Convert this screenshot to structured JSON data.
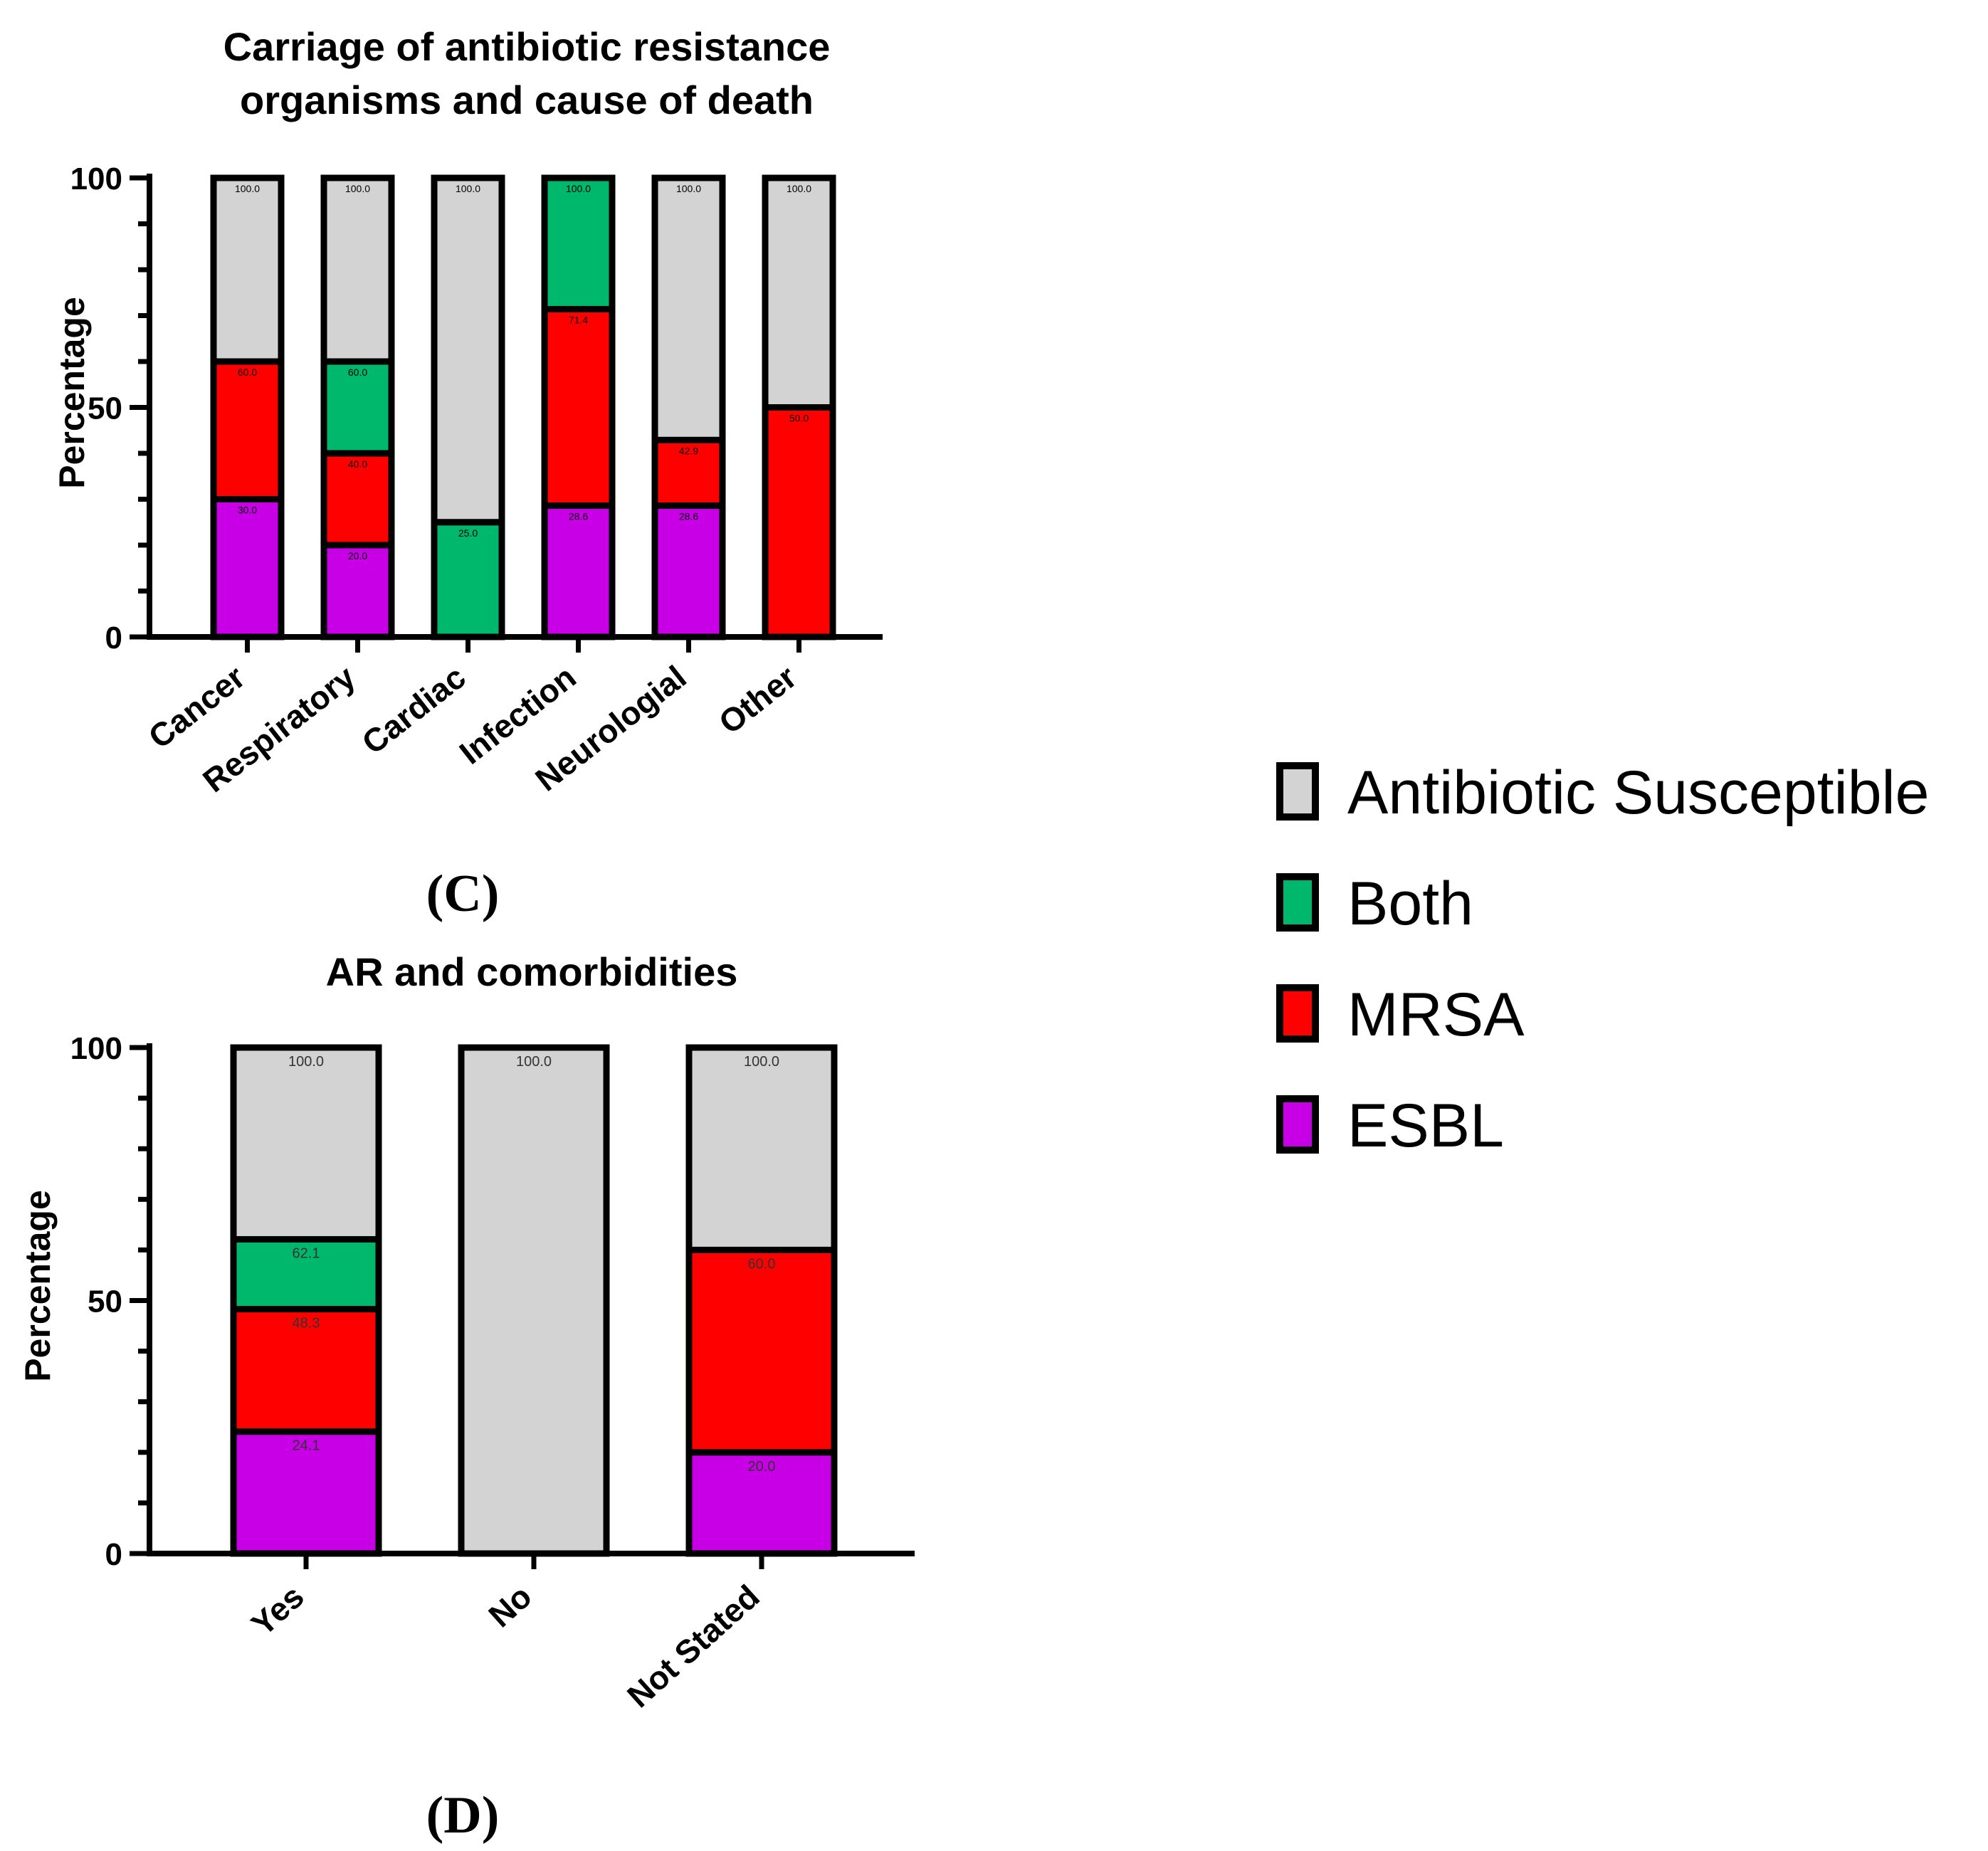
{
  "legend": {
    "items": [
      {
        "label": "Antibiotic Susceptible",
        "color": "#d3d3d3"
      },
      {
        "label": "Both",
        "color": "#00b86b"
      },
      {
        "label": "MRSA",
        "color": "#ff0000"
      },
      {
        "label": "ESBL",
        "color": "#c800e6"
      }
    ]
  },
  "chart_data": [
    {
      "panel_label": "(C)",
      "type": "bar",
      "stacked": true,
      "title": "Carriage of antibiotic resistance organisms and cause of death",
      "title_lines": [
        "Carriage of antibiotic resistance",
        "organisms and cause of death"
      ],
      "xlabel": "",
      "ylabel": "Percentage",
      "ylim": [
        0,
        100
      ],
      "yticks": [
        0,
        50,
        100
      ],
      "categories": [
        "Cancer",
        "Respiratory",
        "Cardiac",
        "Infection",
        "Neurologial",
        "Other"
      ],
      "series": [
        {
          "name": "ESBL",
          "values": [
            30.0,
            20.0,
            0,
            28.6,
            28.6,
            0
          ]
        },
        {
          "name": "MRSA",
          "values": [
            30.0,
            20.0,
            0,
            42.8,
            14.3,
            50.0
          ]
        },
        {
          "name": "Both",
          "values": [
            0,
            20.0,
            25.0,
            28.6,
            0,
            0
          ]
        },
        {
          "name": "Antibiotic Susceptible",
          "values": [
            40.0,
            40.0,
            75.0,
            0,
            57.1,
            50.0
          ]
        }
      ],
      "data_labels": [
        [
          "30.0",
          "60.0",
          "100.0"
        ],
        [
          "20.0",
          "40.0",
          "60.0",
          "100.0"
        ],
        [
          "25.0",
          "100.0"
        ],
        [
          "28.6",
          "71.4",
          "100.0"
        ],
        [
          "28.6",
          "42.9",
          "100.0"
        ],
        [
          "50.0",
          "100.0"
        ]
      ]
    },
    {
      "panel_label": "(D)",
      "type": "bar",
      "stacked": true,
      "title": "AR and comorbidities",
      "title_lines": [
        "AR and comorbidities"
      ],
      "xlabel": "",
      "ylabel": "Percentage",
      "ylim": [
        0,
        100
      ],
      "yticks": [
        0,
        50,
        100
      ],
      "categories": [
        "Yes",
        "No",
        "Not Stated"
      ],
      "series": [
        {
          "name": "ESBL",
          "values": [
            24.1,
            0,
            20.0
          ]
        },
        {
          "name": "MRSA",
          "values": [
            24.2,
            0,
            40.0
          ]
        },
        {
          "name": "Both",
          "values": [
            13.8,
            0,
            0
          ]
        },
        {
          "name": "Antibiotic Susceptible",
          "values": [
            37.9,
            100.0,
            40.0
          ]
        }
      ],
      "data_labels": [
        [
          "24.1",
          "48.3",
          "62.1",
          "100.0"
        ],
        [
          "100.0"
        ],
        [
          "20.0",
          "60.0",
          "100.0"
        ]
      ]
    }
  ]
}
